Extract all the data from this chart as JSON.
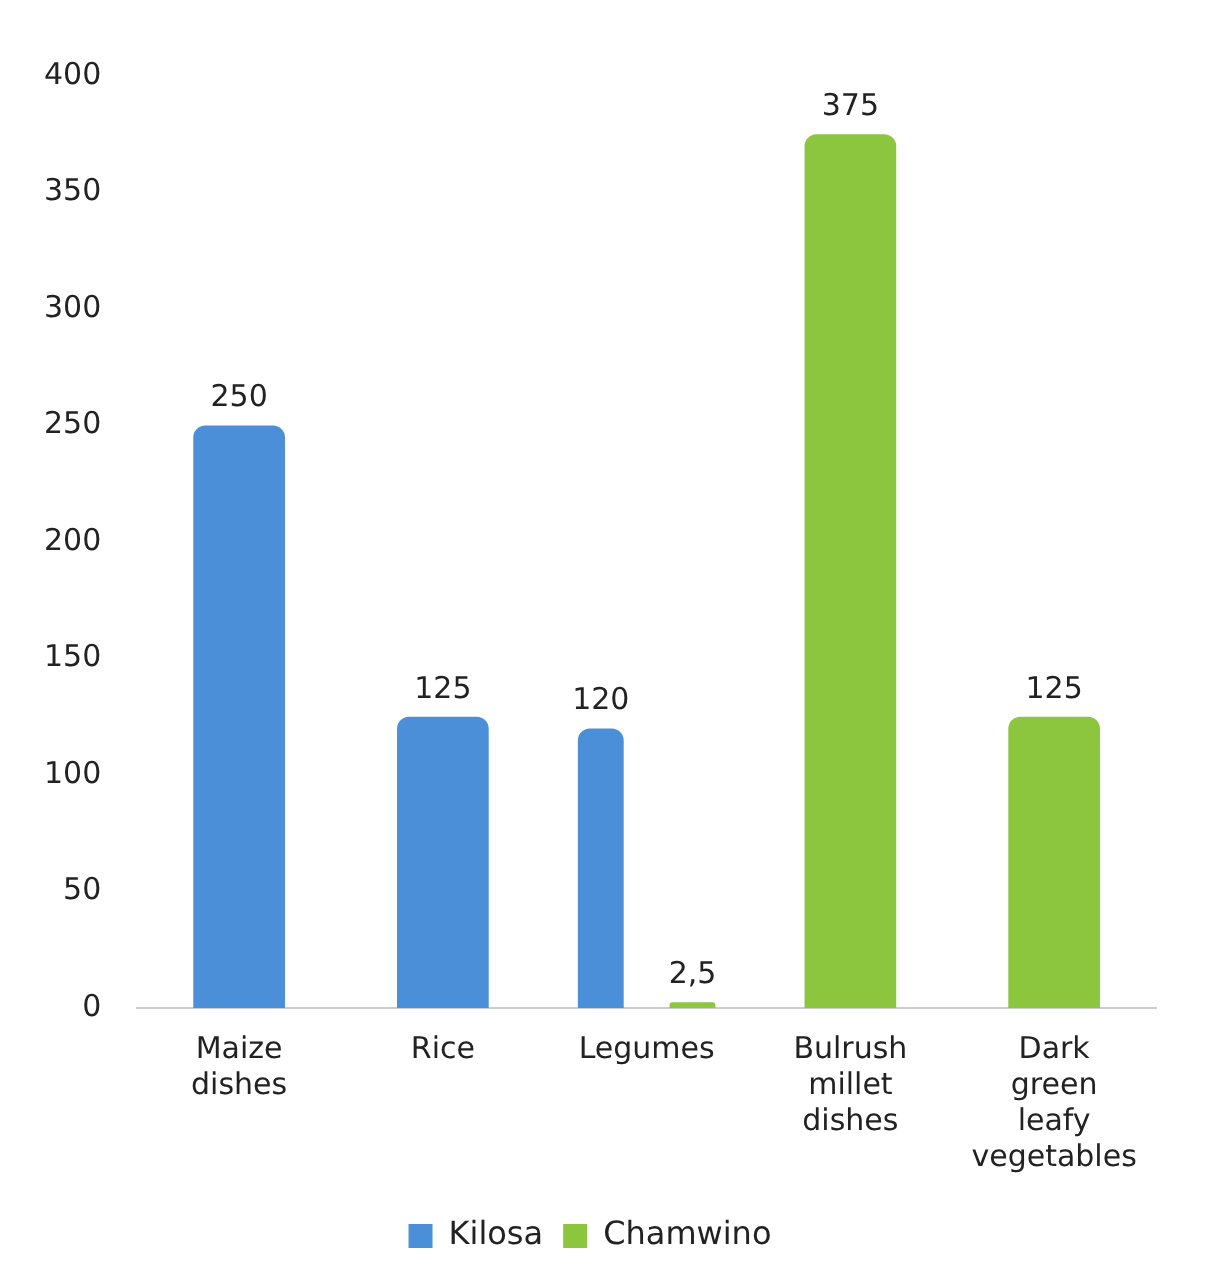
{
  "chart_data": {
    "type": "bar",
    "categories": [
      "Maize dishes",
      "Rice",
      "Legumes",
      "Bulrush millet dishes",
      "Dark green leafy vegetables"
    ],
    "series": [
      {
        "name": "Kilosa",
        "color": "#4a8fd8",
        "values": [
          250,
          125,
          120,
          null,
          null
        ],
        "value_labels": [
          "250",
          "125",
          "120",
          null,
          null
        ]
      },
      {
        "name": "Chamwino",
        "color": "#8cc63e",
        "values": [
          null,
          null,
          2.5,
          375,
          125
        ],
        "value_labels": [
          null,
          null,
          "2,5",
          "375",
          "125"
        ]
      }
    ],
    "ylim": [
      0,
      400
    ],
    "yticks": [
      0,
      50,
      100,
      150,
      200,
      250,
      300,
      350,
      400
    ],
    "grid": false,
    "legend": "bottom"
  }
}
